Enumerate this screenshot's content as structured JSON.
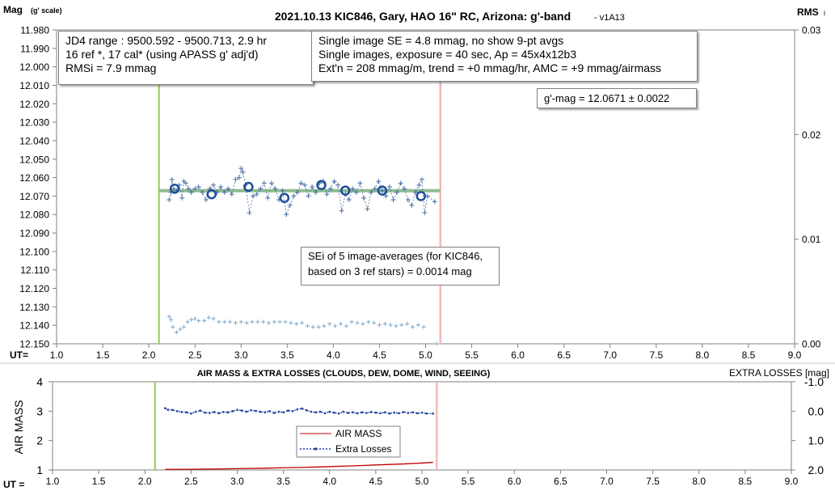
{
  "chart_data": [
    {
      "type": "scatter",
      "title": "2021.10.13 KIC846, Gary, HAO 16\" RC, Arizona: g'-band",
      "subtitle": "- v1A13",
      "ylabel": "Mag",
      "ylabel_sub": "(g' scale)",
      "y2label": "RMS",
      "y2label_sub": "i",
      "xlabel": "UT=",
      "xlim": [
        1.0,
        9.0
      ],
      "ylim": [
        11.98,
        12.15
      ],
      "y_reversed": true,
      "y2lim": [
        0.0,
        0.03
      ],
      "x_ticks": [
        "1.0",
        "1.5",
        "2.0",
        "2.5",
        "3.0",
        "3.5",
        "4.0",
        "4.5",
        "5.0",
        "5.5",
        "6.0",
        "6.5",
        "7.0",
        "7.5",
        "8.0",
        "8.5",
        "9.0"
      ],
      "y_ticks": [
        "11.980",
        "11.990",
        "12.000",
        "12.010",
        "12.020",
        "12.030",
        "12.040",
        "12.050",
        "12.060",
        "12.070",
        "12.080",
        "12.090",
        "12.100",
        "12.110",
        "12.120",
        "12.130",
        "12.140",
        "12.150"
      ],
      "y2_ticks": [
        "0.03",
        "0.02",
        "0.01",
        "0.00"
      ],
      "vlines": {
        "start": 2.11,
        "end": 5.16,
        "start_color": "#92d050",
        "end_color": "#f4b8b8"
      },
      "fit_line": {
        "x": [
          2.11,
          5.16
        ],
        "y": [
          12.0671,
          12.0671
        ],
        "color": "#8fbc8f"
      },
      "series": [
        {
          "marker": "plus",
          "color": "#4a6fa5",
          "points": [
            [
              2.22,
              12.072
            ],
            [
              2.24,
              12.068
            ],
            [
              2.25,
              12.061
            ],
            [
              2.27,
              12.066
            ],
            [
              2.3,
              12.067
            ],
            [
              2.33,
              12.064
            ],
            [
              2.36,
              12.071
            ],
            [
              2.38,
              12.062
            ],
            [
              2.4,
              12.063
            ],
            [
              2.43,
              12.066
            ],
            [
              2.46,
              12.068
            ],
            [
              2.5,
              12.066
            ],
            [
              2.54,
              12.065
            ],
            [
              2.58,
              12.068
            ],
            [
              2.62,
              12.072
            ],
            [
              2.66,
              12.066
            ],
            [
              2.7,
              12.064
            ],
            [
              2.74,
              12.068
            ],
            [
              2.78,
              12.065
            ],
            [
              2.82,
              12.068
            ],
            [
              2.86,
              12.066
            ],
            [
              2.9,
              12.069
            ],
            [
              2.94,
              12.061
            ],
            [
              2.98,
              12.06
            ],
            [
              3.0,
              12.055
            ],
            [
              3.02,
              12.057
            ],
            [
              3.05,
              12.064
            ],
            [
              3.09,
              12.079
            ],
            [
              3.13,
              12.07
            ],
            [
              3.17,
              12.069
            ],
            [
              3.21,
              12.066
            ],
            [
              3.25,
              12.063
            ],
            [
              3.29,
              12.071
            ],
            [
              3.33,
              12.063
            ],
            [
              3.37,
              12.066
            ],
            [
              3.41,
              12.072
            ],
            [
              3.45,
              12.067
            ],
            [
              3.49,
              12.08
            ],
            [
              3.53,
              12.075
            ],
            [
              3.57,
              12.07
            ],
            [
              3.61,
              12.068
            ],
            [
              3.65,
              12.063
            ],
            [
              3.69,
              12.064
            ],
            [
              3.73,
              12.07
            ],
            [
              3.77,
              12.065
            ],
            [
              3.81,
              12.068
            ],
            [
              3.85,
              12.063
            ],
            [
              3.89,
              12.062
            ],
            [
              3.93,
              12.069
            ],
            [
              3.97,
              12.066
            ],
            [
              4.01,
              12.062
            ],
            [
              4.05,
              12.064
            ],
            [
              4.09,
              12.078
            ],
            [
              4.13,
              12.069
            ],
            [
              4.17,
              12.072
            ],
            [
              4.21,
              12.066
            ],
            [
              4.25,
              12.068
            ],
            [
              4.29,
              12.063
            ],
            [
              4.33,
              12.071
            ],
            [
              4.37,
              12.077
            ],
            [
              4.41,
              12.068
            ],
            [
              4.45,
              12.066
            ],
            [
              4.49,
              12.062
            ],
            [
              4.53,
              12.067
            ],
            [
              4.57,
              12.07
            ],
            [
              4.61,
              12.065
            ],
            [
              4.65,
              12.072
            ],
            [
              4.69,
              12.068
            ],
            [
              4.73,
              12.063
            ],
            [
              4.77,
              12.066
            ],
            [
              4.81,
              12.072
            ],
            [
              4.85,
              12.075
            ],
            [
              4.89,
              12.068
            ],
            [
              4.93,
              12.064
            ],
            [
              4.96,
              12.061
            ],
            [
              4.99,
              12.079
            ],
            [
              5.02,
              12.07
            ],
            [
              5.1,
              12.073
            ]
          ]
        },
        {
          "marker": "circle",
          "color": "#1f4e9a",
          "points": [
            [
              2.28,
              12.066
            ],
            [
              2.68,
              12.069
            ],
            [
              3.08,
              12.065
            ],
            [
              3.47,
              12.071
            ],
            [
              3.87,
              12.064
            ],
            [
              4.13,
              12.067
            ],
            [
              4.53,
              12.067
            ],
            [
              4.95,
              12.07
            ]
          ]
        },
        {
          "marker": "plus-small",
          "color": "#7fa9c9",
          "axis": "y2",
          "points": [
            [
              2.22,
              0.0026
            ],
            [
              2.24,
              0.0023
            ],
            [
              2.26,
              0.0016
            ],
            [
              2.3,
              0.0011
            ],
            [
              2.34,
              0.0014
            ],
            [
              2.38,
              0.0016
            ],
            [
              2.42,
              0.0021
            ],
            [
              2.46,
              0.0023
            ],
            [
              2.5,
              0.0024
            ],
            [
              2.54,
              0.0022
            ],
            [
              2.6,
              0.0022
            ],
            [
              2.65,
              0.0025
            ],
            [
              2.7,
              0.0024
            ],
            [
              2.76,
              0.0021
            ],
            [
              2.82,
              0.0021
            ],
            [
              2.88,
              0.0021
            ],
            [
              2.94,
              0.002
            ],
            [
              3.0,
              0.0021
            ],
            [
              3.06,
              0.002
            ],
            [
              3.12,
              0.0021
            ],
            [
              3.18,
              0.0021
            ],
            [
              3.24,
              0.0021
            ],
            [
              3.3,
              0.002
            ],
            [
              3.36,
              0.0021
            ],
            [
              3.42,
              0.0021
            ],
            [
              3.48,
              0.0021
            ],
            [
              3.54,
              0.002
            ],
            [
              3.6,
              0.0019
            ],
            [
              3.66,
              0.002
            ],
            [
              3.72,
              0.0017
            ],
            [
              3.78,
              0.0016
            ],
            [
              3.84,
              0.0016
            ],
            [
              3.9,
              0.0017
            ],
            [
              3.96,
              0.0019
            ],
            [
              4.02,
              0.0017
            ],
            [
              4.08,
              0.0019
            ],
            [
              4.14,
              0.0017
            ],
            [
              4.2,
              0.0021
            ],
            [
              4.26,
              0.002
            ],
            [
              4.32,
              0.0019
            ],
            [
              4.38,
              0.0021
            ],
            [
              4.44,
              0.002
            ],
            [
              4.5,
              0.0018
            ],
            [
              4.56,
              0.0019
            ],
            [
              4.62,
              0.0018
            ],
            [
              4.68,
              0.0017
            ],
            [
              4.74,
              0.0018
            ],
            [
              4.8,
              0.0019
            ],
            [
              4.86,
              0.0016
            ],
            [
              4.92,
              0.0018
            ],
            [
              4.98,
              0.0016
            ],
            [
              5.12,
              0.0
            ]
          ]
        }
      ],
      "annotations": {
        "jd_range": "JD4 range : 9500.592 - 9500.713,  2.9  hr",
        "ref_cal": "16 ref *, 17 cal* (using APASS g' adj'd)",
        "rmsi": "RMSi = 7.9 mmag",
        "single_se": "Single image SE = 4.8 mmag, no show  9-pt avgs",
        "exposure": "Single images, exposure = 40 sec, Ap = 45x4x12b3",
        "extn": "Ext'n = 208 mmag/m, trend = +0 mmag/hr, AMC = +9 mmag/airmass",
        "gmag": "g'-mag = 12.0671 ± 0.0022",
        "sei_1": "SEi of 5 image-averages (for KIC846,",
        "sei_2": "based on 3 ref stars) = 0.0014 mag"
      }
    },
    {
      "type": "line",
      "title": "AIR MASS & EXTRA LOSSES (CLOUDS, DEW, DOME, WIND, SEEING)",
      "ylabel": "AIR MASS",
      "y2label": "EXTRA LOSSES [mag]",
      "xlabel": "UT =",
      "xlim": [
        1.0,
        9.0
      ],
      "ylim": [
        1,
        4
      ],
      "y2lim": [
        -1.0,
        2.0
      ],
      "y2_reversed": true,
      "x_ticks": [
        "1.0",
        "1.5",
        "2.0",
        "2.5",
        "3.0",
        "3.5",
        "4.0",
        "4.5",
        "5.0",
        "5.5",
        "6.0",
        "6.5",
        "7.0",
        "7.5",
        "8.0",
        "8.5",
        "9.0"
      ],
      "y_ticks": [
        "4",
        "3",
        "2",
        "1"
      ],
      "y2_ticks": [
        "-1.0",
        "0.0",
        "1.0",
        "2.0"
      ],
      "vlines": {
        "start": 2.11,
        "end": 5.16,
        "start_color": "#92d050",
        "end_color": "#f4b8b8"
      },
      "legend": [
        "AIR MASS",
        "Extra Losses"
      ],
      "series": [
        {
          "name": "AIR MASS",
          "color": "#c00000",
          "axis": "y",
          "x": [
            2.22,
            2.5,
            2.8,
            3.0,
            3.3,
            3.5,
            3.8,
            4.0,
            4.3,
            4.5,
            4.8,
            5.0,
            5.12
          ],
          "values": [
            1.02,
            1.025,
            1.035,
            1.045,
            1.06,
            1.075,
            1.095,
            1.115,
            1.145,
            1.17,
            1.205,
            1.235,
            1.26
          ]
        },
        {
          "name": "Extra Losses",
          "color": "#1f3f9e",
          "axis": "y2",
          "x": [
            2.22,
            2.25,
            2.3,
            2.35,
            2.4,
            2.45,
            2.5,
            2.55,
            2.6,
            2.65,
            2.7,
            2.75,
            2.8,
            2.85,
            2.9,
            2.95,
            3.0,
            3.05,
            3.1,
            3.15,
            3.2,
            3.25,
            3.3,
            3.35,
            3.4,
            3.45,
            3.5,
            3.55,
            3.6,
            3.65,
            3.7,
            3.75,
            3.8,
            3.85,
            3.9,
            3.95,
            4.0,
            4.05,
            4.1,
            4.15,
            4.2,
            4.25,
            4.3,
            4.35,
            4.4,
            4.45,
            4.5,
            4.55,
            4.6,
            4.65,
            4.7,
            4.75,
            4.8,
            4.85,
            4.9,
            4.95,
            5.0,
            5.05,
            5.12
          ],
          "values": [
            -0.1,
            -0.05,
            -0.04,
            0.0,
            0.03,
            0.04,
            0.08,
            0.02,
            -0.02,
            0.05,
            0.06,
            0.03,
            0.07,
            0.03,
            0.04,
            0.0,
            -0.04,
            -0.02,
            0.02,
            -0.03,
            -0.01,
            0.02,
            0.04,
            0.0,
            0.06,
            0.02,
            0.04,
            -0.02,
            0.0,
            -0.06,
            -0.09,
            -0.03,
            0.02,
            0.04,
            0.02,
            0.07,
            0.02,
            0.05,
            0.08,
            0.02,
            0.06,
            0.04,
            0.07,
            0.04,
            0.06,
            0.03,
            0.05,
            0.07,
            0.04,
            0.08,
            0.05,
            0.07,
            0.03,
            0.06,
            0.04,
            0.07,
            0.05,
            0.08,
            0.08
          ]
        }
      ]
    }
  ]
}
